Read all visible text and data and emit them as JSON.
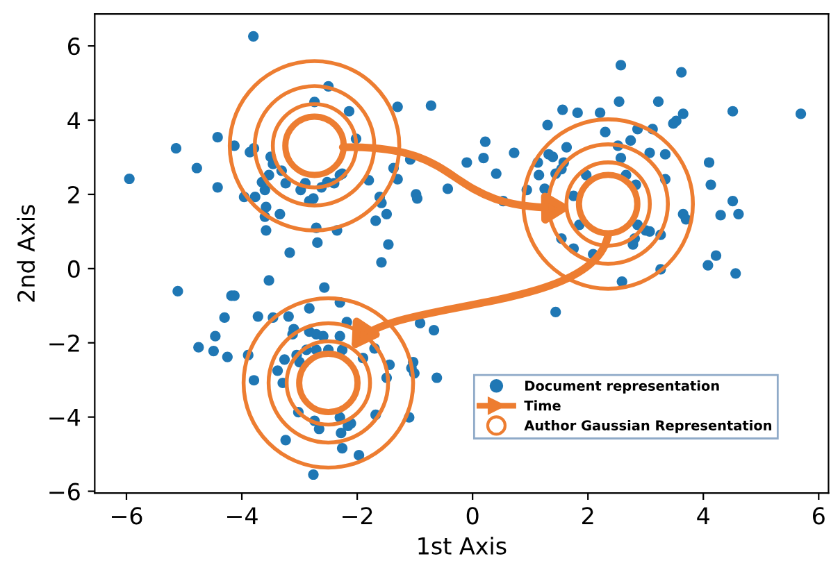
{
  "chart_data": {
    "type": "scatter",
    "xlabel": "1st Axis",
    "ylabel": "2nd Axis",
    "xlim": [
      -6.55,
      6.17
    ],
    "ylim": [
      -6.05,
      6.86
    ],
    "xticks": [
      {
        "value": -6,
        "label": "−6"
      },
      {
        "value": -4,
        "label": "−4"
      },
      {
        "value": -2,
        "label": "−2"
      },
      0,
      2,
      4,
      6
    ],
    "yticks": [
      {
        "value": -6,
        "label": "−6"
      },
      {
        "value": -4,
        "label": "−4"
      },
      {
        "value": -2,
        "label": "−2"
      },
      0,
      2,
      4,
      6
    ],
    "grid": false,
    "legend": "bottom right",
    "marker": "circle",
    "annotations": [
      "Time",
      "Author Gaussian Representation"
    ],
    "series": [
      {
        "name": "Document representation",
        "color": "#1f77b4",
        "x": [
          -3.8,
          -2.5,
          -2.74,
          -2.14,
          -1.3,
          -0.72,
          -4.42,
          -5.14,
          -4.78,
          -5.95,
          -4.13,
          -3.86,
          -3.79,
          -3.5,
          -3.46,
          -3.31,
          -3.53,
          -3.65,
          -3.6,
          -3.24,
          -2.98,
          -2.9,
          -2.62,
          -2.52,
          -2.4,
          -2.3,
          -2.26,
          -2.02,
          -1.8,
          -1.37,
          -1.3,
          -1.08,
          -4.42,
          -3.96,
          -3.77,
          -3.58,
          -3.34,
          -3.6,
          -2.83,
          -2.76,
          -1.61,
          -1.58,
          -1.49,
          -1.68,
          -0.98,
          -0.96,
          -0.43,
          -3.58,
          -2.71,
          -2.35,
          -2.69,
          -3.17,
          -1.46,
          -1.58,
          -3.53,
          -5.11,
          -4.18,
          -4.13,
          -2.57,
          2.57,
          3.62,
          2.54,
          3.22,
          1.56,
          1.82,
          2.21,
          3.65,
          3.53,
          3.48,
          4.51,
          5.69,
          1.3,
          2.3,
          3.12,
          2.86,
          2.74,
          0.22,
          -0.1,
          0.19,
          0.72,
          0.41,
          1.63,
          1.32,
          1.39,
          2.52,
          3.07,
          3.34,
          2.57,
          1.13,
          1.58,
          1.54,
          1.15,
          1.44,
          1.97,
          2.66,
          3.34,
          4.1,
          4.13,
          0.94,
          1.25,
          0.53,
          2.83,
          1.75,
          4.51,
          4.3,
          4.61,
          3.65,
          3.7,
          1.85,
          2.86,
          3.0,
          3.07,
          3.26,
          2.81,
          2.78,
          1.54,
          1.75,
          2.09,
          4.22,
          4.08,
          4.56,
          3.26,
          2.59,
          1.44,
          -4.3,
          -3.72,
          -3.46,
          -3.19,
          -2.83,
          -2.3,
          -4.46,
          -4.75,
          -4.49,
          -4.25,
          -3.1,
          -3.12,
          -2.83,
          -2.71,
          -2.59,
          -2.3,
          -2.18,
          -2.88,
          -2.71,
          -2.5,
          -2.26,
          -1.7,
          -1.9,
          -0.91,
          -0.67,
          -3.89,
          -3.05,
          -3.26,
          -3.0,
          -3.38,
          -3.29,
          -3.79,
          -1.44,
          -1.49,
          -1.03,
          -1.06,
          -1.01,
          -0.62,
          -3.02,
          -2.74,
          -2.66,
          -2.3,
          -2.16,
          -2.11,
          -2.28,
          -1.68,
          -1.1,
          -3.24,
          -2.26,
          -1.97,
          -2.76
        ],
        "values": [
          6.26,
          4.91,
          4.49,
          4.24,
          4.36,
          4.39,
          3.54,
          3.24,
          2.71,
          2.42,
          3.31,
          3.14,
          3.24,
          3.01,
          2.82,
          2.64,
          2.52,
          2.33,
          2.12,
          2.3,
          2.12,
          2.3,
          2.19,
          2.33,
          2.3,
          2.52,
          2.56,
          3.5,
          2.38,
          2.71,
          2.41,
          2.94,
          2.19,
          1.93,
          1.93,
          1.66,
          1.47,
          1.4,
          1.82,
          1.89,
          1.93,
          1.77,
          1.47,
          1.29,
          2.0,
          1.89,
          2.15,
          1.03,
          1.1,
          1.03,
          0.7,
          0.43,
          0.65,
          0.17,
          -0.32,
          -0.61,
          -0.73,
          -0.73,
          -0.51,
          5.48,
          5.29,
          4.5,
          4.5,
          4.28,
          4.2,
          4.2,
          4.17,
          3.98,
          3.91,
          4.24,
          4.17,
          3.87,
          3.68,
          3.76,
          3.76,
          3.45,
          3.42,
          2.86,
          2.98,
          3.12,
          2.56,
          3.27,
          3.08,
          3.01,
          3.31,
          3.12,
          3.08,
          2.98,
          2.86,
          2.86,
          2.68,
          2.52,
          2.56,
          2.52,
          2.52,
          2.41,
          2.86,
          2.26,
          2.12,
          2.15,
          1.82,
          2.26,
          1.96,
          1.82,
          1.44,
          1.47,
          1.47,
          1.33,
          1.18,
          1.18,
          1.03,
          1.0,
          0.91,
          0.81,
          0.65,
          0.81,
          0.54,
          0.39,
          0.35,
          0.09,
          -0.13,
          -0.02,
          -0.35,
          -1.17,
          -1.32,
          -1.29,
          -1.32,
          -1.29,
          -1.07,
          -0.91,
          -1.82,
          -2.12,
          -2.22,
          -2.38,
          -1.63,
          -1.77,
          -1.7,
          -1.77,
          -1.82,
          -1.82,
          -1.44,
          -2.19,
          -2.19,
          -2.19,
          -2.19,
          -2.15,
          -2.41,
          -1.47,
          -1.66,
          -2.33,
          -2.33,
          -2.45,
          -2.52,
          -2.75,
          -3.08,
          -3.01,
          -2.59,
          -2.94,
          -2.52,
          -2.68,
          -2.82,
          -2.94,
          -3.87,
          -4.1,
          -4.32,
          -4.01,
          -4.24,
          -4.17,
          -4.43,
          -3.94,
          -4.01,
          -4.62,
          -4.84,
          -5.03,
          -5.55
        ]
      }
    ]
  }
}
